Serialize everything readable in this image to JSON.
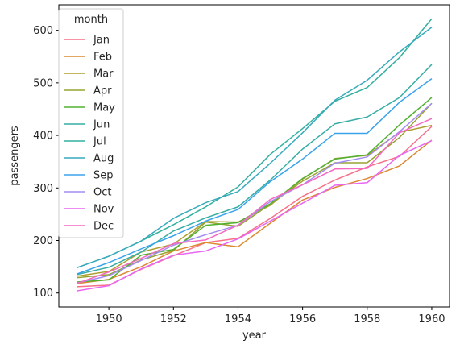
{
  "chart_data": {
    "type": "line",
    "xlabel": "year",
    "ylabel": "passengers",
    "xlim": [
      1948.45,
      1960.55
    ],
    "ylim": [
      73.5,
      648.5
    ],
    "xticks": [
      1950,
      1952,
      1954,
      1956,
      1958,
      1960
    ],
    "yticks": [
      100,
      200,
      300,
      400,
      500,
      600
    ],
    "grid": false,
    "legend_title": "month",
    "legend_position": "upper-left",
    "x": [
      1949,
      1950,
      1951,
      1952,
      1953,
      1954,
      1955,
      1956,
      1957,
      1958,
      1959,
      1960
    ],
    "series": [
      {
        "name": "Jan",
        "color": "#f77189",
        "values": [
          112,
          115,
          145,
          171,
          196,
          204,
          242,
          284,
          315,
          340,
          360,
          417
        ]
      },
      {
        "name": "Feb",
        "color": "#dc8932",
        "values": [
          118,
          126,
          150,
          180,
          196,
          188,
          233,
          277,
          301,
          318,
          342,
          391
        ]
      },
      {
        "name": "Mar",
        "color": "#ae9d31",
        "values": [
          132,
          141,
          178,
          193,
          236,
          235,
          267,
          317,
          356,
          362,
          406,
          419
        ]
      },
      {
        "name": "Apr",
        "color": "#97a431",
        "values": [
          129,
          135,
          163,
          181,
          235,
          227,
          269,
          313,
          348,
          348,
          396,
          461
        ]
      },
      {
        "name": "May",
        "color": "#50b131",
        "values": [
          121,
          125,
          172,
          183,
          229,
          234,
          270,
          318,
          355,
          363,
          420,
          472
        ]
      },
      {
        "name": "Jun",
        "color": "#36ada4",
        "values": [
          135,
          149,
          178,
          218,
          243,
          264,
          315,
          374,
          422,
          435,
          472,
          535
        ]
      },
      {
        "name": "Jul",
        "color": "#33b09f",
        "values": [
          148,
          170,
          199,
          230,
          264,
          302,
          364,
          413,
          465,
          491,
          548,
          622
        ]
      },
      {
        "name": "Aug",
        "color": "#38aabd",
        "values": [
          148,
          170,
          199,
          242,
          272,
          293,
          347,
          405,
          467,
          505,
          559,
          606
        ]
      },
      {
        "name": "Sep",
        "color": "#3ba3ec",
        "values": [
          136,
          158,
          184,
          209,
          237,
          259,
          312,
          355,
          404,
          404,
          463,
          508
        ]
      },
      {
        "name": "Oct",
        "color": "#a48cf4",
        "values": [
          119,
          133,
          162,
          191,
          211,
          229,
          274,
          306,
          347,
          359,
          407,
          461
        ]
      },
      {
        "name": "Nov",
        "color": "#e866f4",
        "values": [
          104,
          114,
          146,
          172,
          180,
          203,
          237,
          271,
          305,
          310,
          362,
          390
        ]
      },
      {
        "name": "Dec",
        "color": "#f668c2",
        "values": [
          118,
          140,
          166,
          194,
          201,
          229,
          278,
          306,
          336,
          337,
          405,
          432
        ]
      }
    ]
  }
}
